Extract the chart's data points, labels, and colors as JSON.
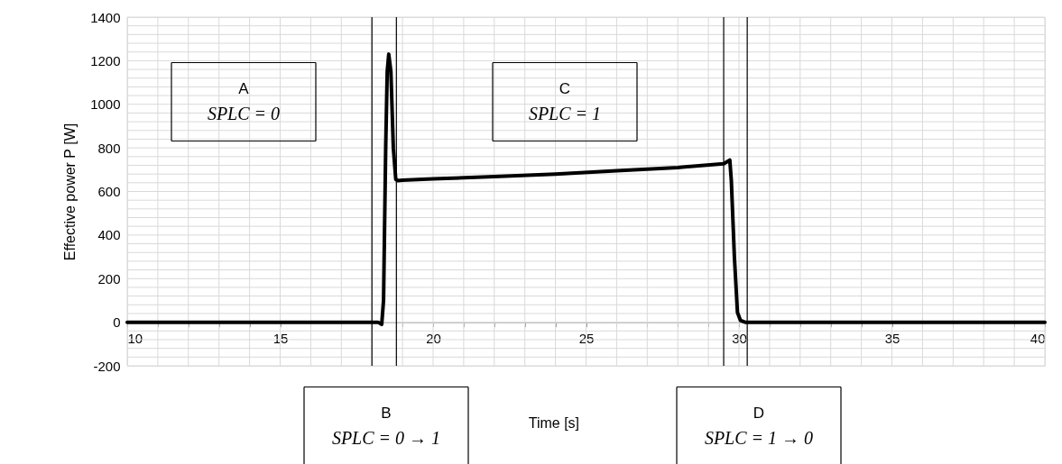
{
  "chart_data": {
    "type": "line",
    "xlabel": "Time  [s]",
    "ylabel": "Effective power P [W]",
    "x": [
      10,
      18.0,
      18.2,
      18.32,
      18.38,
      18.45,
      18.5,
      18.55,
      18.62,
      18.7,
      18.78,
      18.85,
      19,
      20,
      22,
      24,
      26,
      28,
      29.5,
      29.7,
      29.75,
      29.85,
      29.95,
      30.05,
      30.2,
      35,
      40
    ],
    "series": [
      {
        "color": "#000000",
        "values": [
          0,
          0,
          0,
          -10,
          100,
          800,
          1150,
          1230,
          1150,
          800,
          655,
          650,
          652,
          658,
          668,
          680,
          695,
          710,
          727,
          744,
          650,
          300,
          45,
          8,
          0,
          0,
          0
        ]
      }
    ],
    "xlim": [
      10,
      40
    ],
    "ylim": [
      -200,
      1400
    ],
    "xticks": [
      10,
      {
        "value": 11,
        "label": null
      },
      {
        "value": 12,
        "label": null
      },
      {
        "value": 13,
        "label": null
      },
      {
        "value": 14,
        "label": null
      },
      15,
      {
        "value": 16,
        "label": null
      },
      {
        "value": 17,
        "label": null
      },
      {
        "value": 18,
        "label": null
      },
      {
        "value": 19,
        "label": null
      },
      20,
      {
        "value": 21,
        "label": null
      },
      {
        "value": 22,
        "label": null
      },
      {
        "value": 23,
        "label": null
      },
      {
        "value": 24,
        "label": null
      },
      25,
      {
        "value": 26,
        "label": null
      },
      {
        "value": 27,
        "label": null
      },
      {
        "value": 28,
        "label": null
      },
      {
        "value": 29,
        "label": null
      },
      30,
      {
        "value": 31,
        "label": null
      },
      {
        "value": 32,
        "label": null
      },
      {
        "value": 33,
        "label": null
      },
      {
        "value": 34,
        "label": null
      },
      35,
      {
        "value": 36,
        "label": null
      },
      {
        "value": 37,
        "label": null
      },
      {
        "value": 38,
        "label": null
      },
      {
        "value": 39,
        "label": null
      },
      40
    ],
    "yticks": [
      -200,
      {
        "value": -160,
        "label": null
      },
      {
        "value": -120,
        "label": null
      },
      {
        "value": -80,
        "label": null
      },
      {
        "value": -40,
        "label": null
      },
      0,
      {
        "value": 40,
        "label": null
      },
      {
        "value": 80,
        "label": null
      },
      {
        "value": 120,
        "label": null
      },
      {
        "value": 160,
        "label": null
      },
      200,
      {
        "value": 240,
        "label": null
      },
      {
        "value": 280,
        "label": null
      },
      {
        "value": 320,
        "label": null
      },
      {
        "value": 360,
        "label": null
      },
      400,
      {
        "value": 440,
        "label": null
      },
      {
        "value": 480,
        "label": null
      },
      {
        "value": 520,
        "label": null
      },
      {
        "value": 560,
        "label": null
      },
      600,
      {
        "value": 640,
        "label": null
      },
      {
        "value": 680,
        "label": null
      },
      {
        "value": 720,
        "label": null
      },
      {
        "value": 760,
        "label": null
      },
      800,
      {
        "value": 840,
        "label": null
      },
      {
        "value": 880,
        "label": null
      },
      {
        "value": 920,
        "label": null
      },
      {
        "value": 960,
        "label": null
      },
      1000,
      {
        "value": 1040,
        "label": null
      },
      {
        "value": 1080,
        "label": null
      },
      {
        "value": 1120,
        "label": null
      },
      {
        "value": 1160,
        "label": null
      },
      1200,
      {
        "value": 1240,
        "label": null
      },
      {
        "value": 1280,
        "label": null
      },
      {
        "value": 1320,
        "label": null
      },
      {
        "value": 1360,
        "label": null
      },
      1400
    ],
    "grid": true,
    "marker": "none",
    "line_style": "solid",
    "ref_lines": [
      {
        "axis": "x",
        "value": 18.0,
        "color": "#000000"
      },
      {
        "axis": "x",
        "value": 18.8,
        "color": "#000000"
      },
      {
        "axis": "x",
        "value": 29.5,
        "color": "#000000"
      },
      {
        "axis": "x",
        "value": 30.27,
        "color": "#000000"
      }
    ],
    "annotations": [
      "A\nSPLC = 0",
      "C\nSPLC = 1",
      "B\nSPLC = 0 → 1",
      "D\nSPLC = 1 → 0"
    ]
  }
}
